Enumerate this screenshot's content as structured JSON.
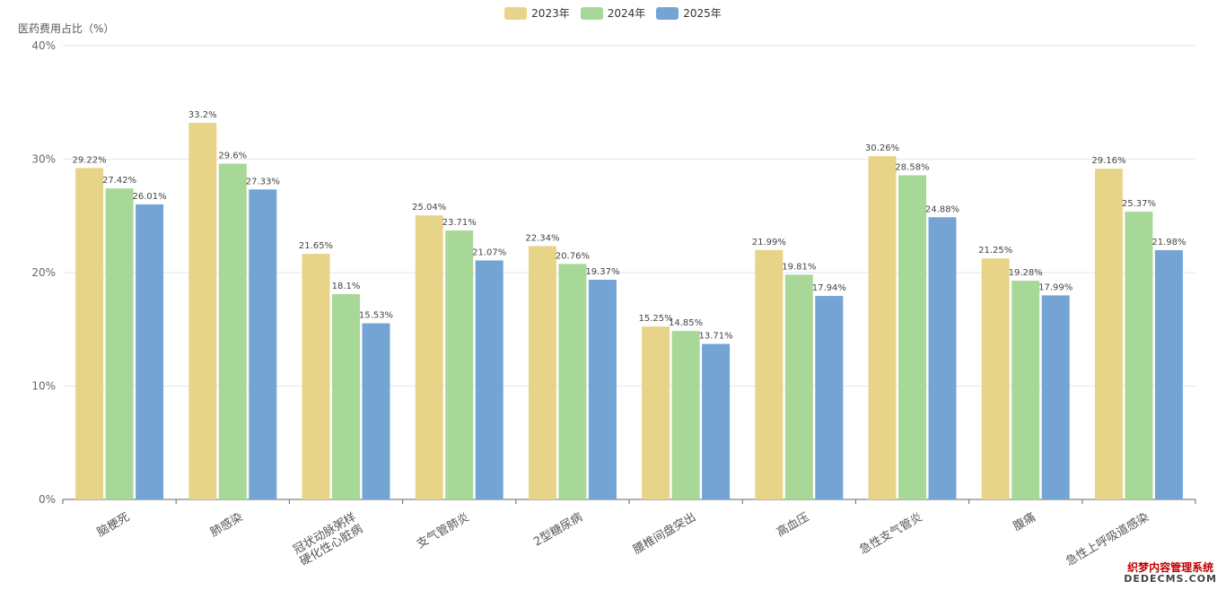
{
  "chart_data": {
    "type": "bar",
    "title": "",
    "ylabel": "医药费用占比（%）",
    "xlabel": "",
    "ylim": [
      0,
      40
    ],
    "yticks": [
      0,
      10,
      20,
      30,
      40
    ],
    "ytick_suffix": "%",
    "grid": true,
    "legend_position": "top-center",
    "categories": [
      [
        "脑梗死"
      ],
      [
        "肺感染"
      ],
      [
        "冠状动脉粥样",
        "硬化性心脏病"
      ],
      [
        "支气管肺炎"
      ],
      [
        "2型糖尿病"
      ],
      [
        "腰椎间盘突出"
      ],
      [
        "高血压"
      ],
      [
        "急性支气管炎"
      ],
      [
        "腹痛"
      ],
      [
        "急性上呼吸道感染"
      ]
    ],
    "series": [
      {
        "name": "2023年",
        "color": "#e8d488",
        "values": [
          29.22,
          33.2,
          21.65,
          25.04,
          22.34,
          15.25,
          21.99,
          30.26,
          21.25,
          29.16
        ],
        "labels": [
          "29.22%",
          "33.2%",
          "21.65%",
          "25.04%",
          "22.34%",
          "15.25%",
          "21.99%",
          "30.26%",
          "21.25%",
          "29.16%"
        ]
      },
      {
        "name": "2024年",
        "color": "#a8d898",
        "values": [
          27.42,
          29.6,
          18.1,
          23.71,
          20.76,
          14.85,
          19.81,
          28.58,
          19.28,
          25.37
        ],
        "labels": [
          "27.42%",
          "29.6%",
          "18.1%",
          "23.71%",
          "20.76%",
          "14.85%",
          "19.81%",
          "28.58%",
          "19.28%",
          "25.37%"
        ]
      },
      {
        "name": "2025年",
        "color": "#74a4d4",
        "values": [
          26.01,
          27.33,
          15.53,
          21.07,
          19.37,
          13.71,
          17.94,
          24.88,
          17.99,
          21.98
        ],
        "labels": [
          "26.01%",
          "27.33%",
          "15.53%",
          "21.07%",
          "19.37%",
          "13.71%",
          "17.94%",
          "24.88%",
          "17.99%",
          "21.98%"
        ]
      }
    ]
  },
  "watermark": {
    "line1": "织梦内容管理系统",
    "line2": "DEDECMS.COM"
  }
}
